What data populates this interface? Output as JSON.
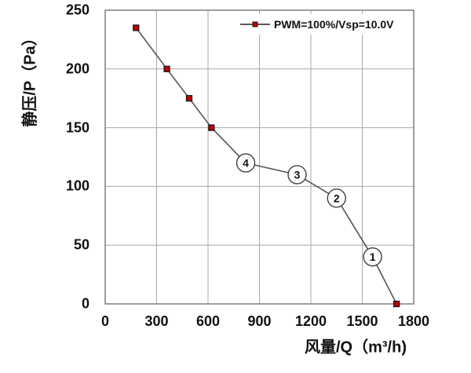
{
  "chart_data": {
    "type": "line",
    "title": "",
    "xlabel": "风量/Q（m³/h)",
    "ylabel": "静压/P（Pa）",
    "xlim": [
      0,
      1800
    ],
    "ylim": [
      0,
      250
    ],
    "x_ticks": [
      "0",
      "300",
      "600",
      "900",
      "1200",
      "1500",
      "1800"
    ],
    "y_ticks": [
      "0",
      "50",
      "100",
      "150",
      "200",
      "250"
    ],
    "grid": true,
    "legend_position": "top-right-inside",
    "series": [
      {
        "name": "PWM=100%/Vsp=10.0V",
        "marker": "square",
        "marker_fill": "#c00000",
        "marker_stroke": "#1a1a1a",
        "line_color": "#555555",
        "points": [
          {
            "x": 180,
            "y": 235,
            "marker": true
          },
          {
            "x": 360,
            "y": 200,
            "marker": true
          },
          {
            "x": 490,
            "y": 175,
            "marker": true
          },
          {
            "x": 620,
            "y": 150,
            "marker": true
          },
          {
            "x": 820,
            "y": 120,
            "marker": false
          },
          {
            "x": 1120,
            "y": 110,
            "marker": false
          },
          {
            "x": 1350,
            "y": 90,
            "marker": false
          },
          {
            "x": 1560,
            "y": 40,
            "marker": false
          },
          {
            "x": 1700,
            "y": 0,
            "marker": true
          }
        ]
      }
    ],
    "annotations": [
      {
        "label": "④",
        "digit": "4",
        "x": 820,
        "y": 120
      },
      {
        "label": "③",
        "digit": "3",
        "x": 1120,
        "y": 110
      },
      {
        "label": "②",
        "digit": "2",
        "x": 1350,
        "y": 90
      },
      {
        "label": "①",
        "digit": "1",
        "x": 1560,
        "y": 40
      }
    ],
    "colors": {
      "grid": "#a8a8a8",
      "plot_border": "#7f7f7f",
      "text": "#111111",
      "annotation_circle_stroke": "#3f3f3f",
      "annotation_circle_fill": "#ffffff"
    }
  }
}
